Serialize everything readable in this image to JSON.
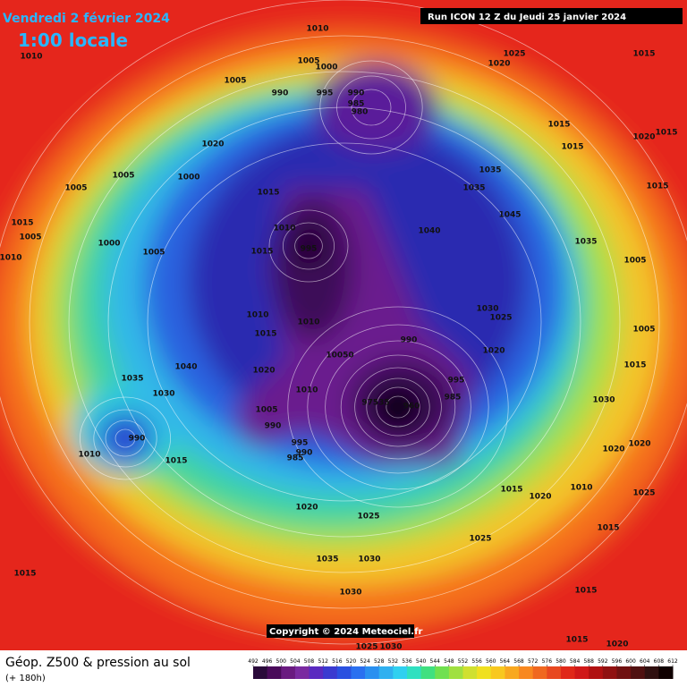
{
  "header": {
    "date": "Vendredi 2 février 2024",
    "local_time": "1:00 locale",
    "run": "Run ICON 12 Z du Jeudi 25 janvier 2024"
  },
  "map": {
    "pressure_labels": [
      1010,
      1010,
      1005,
      1000,
      1025,
      1020,
      1015,
      1005,
      990,
      995,
      990,
      985,
      980,
      1015,
      1020,
      1015,
      1015,
      1020,
      1005,
      1000,
      1005,
      1015,
      995,
      1010,
      1015,
      1035,
      1045,
      1035,
      1040,
      1035,
      1005,
      1030,
      1025,
      1020,
      990,
      10050,
      1010,
      1010,
      1015,
      1020,
      1010,
      995,
      985,
      960,
      97535,
      1005,
      990,
      995,
      990,
      985,
      1035,
      1030,
      1040,
      990,
      1015,
      1010,
      1020,
      1025,
      1015,
      1020,
      1010,
      1025,
      1015,
      1025,
      1035,
      1030,
      1030,
      1015,
      1015,
      1025,
      1030,
      1015,
      1020,
      1015,
      1005,
      1030,
      1020,
      1020,
      1015,
      1000,
      1005,
      1015,
      1010,
      1005
    ]
  },
  "copyright": "Copyright © 2024 Meteociel.fr",
  "footer": {
    "title": "Géop. Z500 & pression au sol",
    "lead": "(+ 180h)",
    "colorbar_ticks": [
      492,
      496,
      500,
      504,
      508,
      512,
      516,
      520,
      524,
      528,
      532,
      536,
      540,
      544,
      548,
      552,
      556,
      560,
      564,
      568,
      572,
      576,
      580,
      584,
      588,
      592,
      596,
      600,
      604,
      608,
      612
    ]
  }
}
